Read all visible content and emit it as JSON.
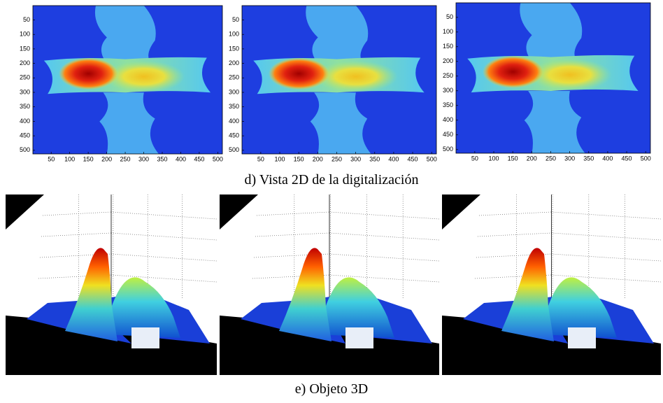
{
  "chart_data": [
    {
      "type": "heatmap",
      "xlim": [
        0.5,
        512.5
      ],
      "ylim": [
        0.5,
        512.5
      ],
      "yreverse": true,
      "xticks": [
        50,
        100,
        150,
        200,
        250,
        300,
        350,
        400,
        450,
        500
      ],
      "yticks": [
        50,
        100,
        150,
        200,
        250,
        300,
        350,
        400,
        450,
        500
      ]
    },
    {
      "type": "heatmap",
      "xlim": [
        0.5,
        512.5
      ],
      "ylim": [
        0.5,
        512.5
      ],
      "yreverse": true,
      "xticks": [
        50,
        100,
        150,
        200,
        250,
        300,
        350,
        400,
        450,
        500
      ],
      "yticks": [
        50,
        100,
        150,
        200,
        250,
        300,
        350,
        400,
        450,
        500
      ]
    },
    {
      "type": "heatmap",
      "xlim": [
        0.5,
        512.5
      ],
      "ylim": [
        0.5,
        512.5
      ],
      "yreverse": true,
      "xticks": [
        50,
        100,
        150,
        200,
        250,
        300,
        350,
        400,
        450,
        500
      ],
      "yticks": [
        50,
        100,
        150,
        200,
        250,
        300,
        350,
        400,
        450,
        500
      ]
    }
  ],
  "captions": [
    "d) Vista 2D de la digitalización",
    "e) Objeto 3D"
  ]
}
